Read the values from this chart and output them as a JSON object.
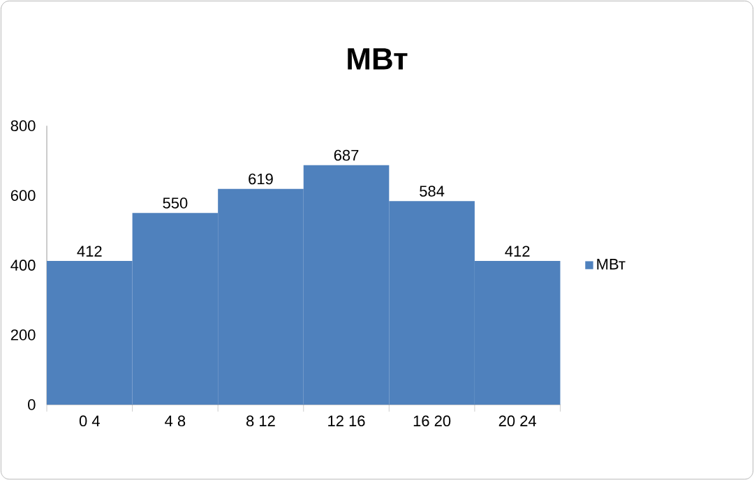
{
  "chart_data": {
    "type": "bar",
    "title": "МВт",
    "categories": [
      "0 4",
      "4 8",
      "8 12",
      "12 16",
      "16 20",
      "20 24"
    ],
    "series": [
      {
        "name": "МВт",
        "color": "#4f81bd",
        "values": [
          412,
          550,
          619,
          687,
          584,
          412
        ]
      }
    ],
    "ylim": [
      0,
      800
    ],
    "yticks": [
      0,
      200,
      400,
      600,
      800
    ],
    "data_labels": true,
    "legend": "right",
    "grid": false
  }
}
